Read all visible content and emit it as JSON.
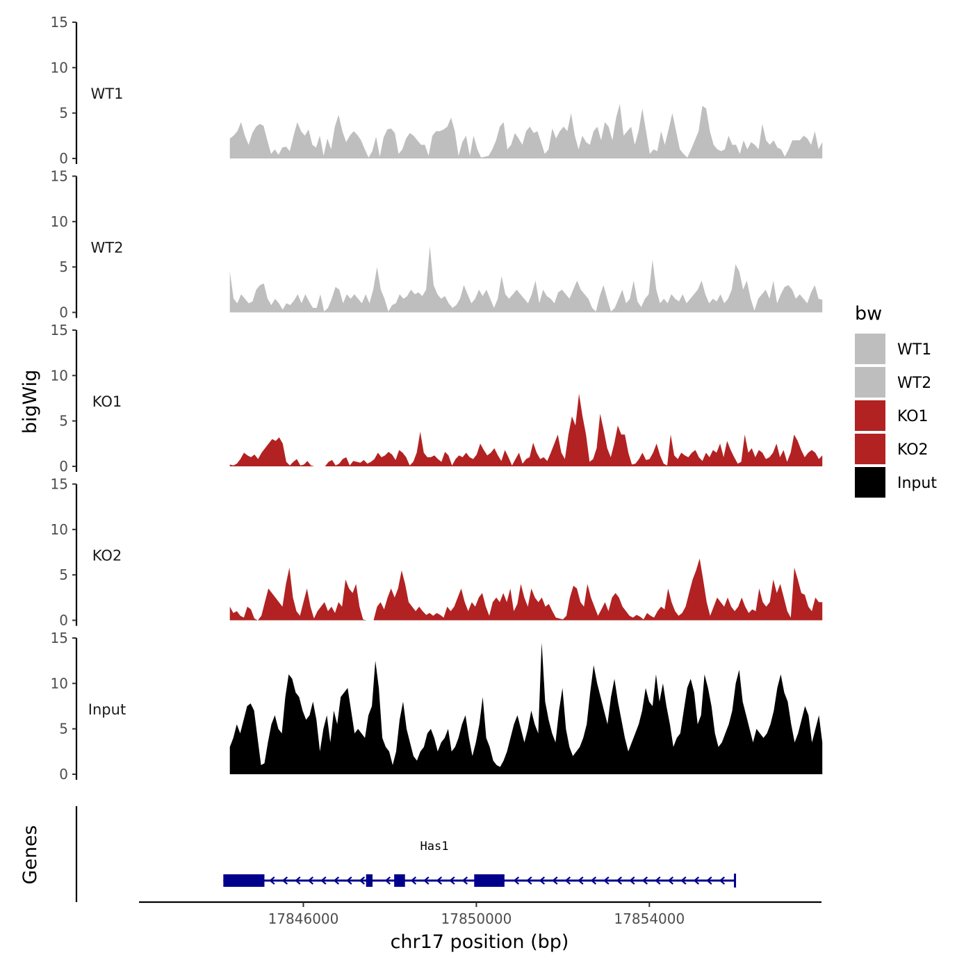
{
  "chart_data": {
    "type": "area",
    "xlabel": "chr17 position (bp)",
    "ylabel": "bigWig",
    "genes_label": "Genes",
    "xlim": [
      17842200,
      17857980
    ],
    "x_ticks": [
      17846000,
      17850000,
      17854000
    ],
    "x_tick_labels": [
      "17846000",
      "17850000",
      "17854000"
    ],
    "ylim": [
      0,
      15
    ],
    "y_ticks": [
      0,
      5,
      10,
      15
    ],
    "y_tick_labels": [
      "0",
      "5",
      "10",
      "15"
    ],
    "data_range": [
      17844300,
      17858000
    ],
    "tracks": [
      {
        "name": "WT1",
        "label": "WT1",
        "color": "#bebebe",
        "values": [
          2.2,
          2.5,
          3.0,
          4.0,
          2.5,
          1.5,
          2.8,
          3.5,
          3.8,
          3.6,
          2.0,
          0.5,
          1.0,
          0.4,
          1.2,
          1.3,
          0.8,
          2.5,
          4.0,
          3.0,
          2.5,
          3.2,
          1.5,
          1.2,
          2.5,
          0.3,
          2.2,
          1.0,
          3.5,
          4.8,
          3.0,
          1.8,
          2.5,
          3.0,
          2.6,
          2.0,
          1.0,
          0.1,
          0.8,
          2.4,
          0.2,
          2.3,
          3.2,
          3.3,
          2.8,
          0.5,
          1.0,
          2.2,
          2.8,
          2.5,
          2.0,
          1.5,
          1.5,
          0.3,
          2.5,
          3.0,
          3.0,
          3.2,
          3.5,
          4.5,
          3.0,
          0.3,
          1.8,
          2.5,
          0.3,
          2.5,
          1.0,
          0.1,
          0.2,
          0.3,
          1.0,
          2.0,
          3.5,
          4.0,
          1.0,
          1.5,
          2.8,
          2.2,
          1.5,
          3.0,
          3.5,
          2.8,
          3.0,
          1.8,
          0.5,
          1.0,
          3.3,
          2.2,
          3.0,
          3.5,
          3.0,
          5.0,
          2.5,
          1.0,
          2.5,
          1.8,
          1.5,
          3.0,
          3.5,
          2.0,
          4.0,
          3.5,
          2.0,
          4.5,
          6.0,
          2.5,
          3.0,
          3.5,
          1.5,
          3.0,
          5.5,
          3.0,
          0.5,
          1.0,
          0.8,
          3.0,
          1.5,
          3.2,
          5.0,
          3.0,
          1.0,
          0.5,
          0.1,
          1.0,
          2.0,
          3.0,
          5.8,
          5.5,
          3.0,
          1.5,
          1.0,
          0.8,
          1.0,
          2.5,
          1.5,
          1.5,
          0.5,
          2.0,
          1.0,
          1.8,
          1.5,
          1.0,
          3.8,
          2.0,
          1.5,
          2.0,
          1.2,
          1.0,
          0.2,
          1.0,
          2.0,
          2.0,
          2.0,
          2.5,
          2.2,
          1.5,
          3.0,
          1.0,
          1.8
        ]
      },
      {
        "name": "WT2",
        "label": "WT2",
        "color": "#bebebe",
        "values": [
          4.5,
          1.5,
          1.0,
          2.0,
          1.5,
          1.0,
          1.2,
          2.5,
          3.0,
          3.2,
          1.5,
          0.8,
          1.5,
          1.0,
          0.3,
          1.0,
          0.8,
          1.3,
          2.0,
          1.0,
          2.0,
          1.2,
          0.5,
          0.5,
          2.0,
          0.1,
          0.5,
          1.5,
          2.8,
          2.5,
          1.0,
          2.0,
          1.5,
          2.0,
          1.5,
          1.0,
          2.0,
          1.0,
          2.5,
          5.0,
          2.5,
          1.5,
          0.1,
          0.8,
          1.0,
          2.0,
          1.5,
          1.8,
          2.5,
          2.0,
          2.2,
          1.8,
          2.5,
          7.3,
          3.0,
          2.0,
          1.5,
          1.8,
          1.0,
          0.5,
          0.8,
          1.5,
          3.0,
          2.0,
          1.0,
          1.5,
          2.5,
          1.8,
          2.5,
          1.5,
          0.5,
          1.5,
          4.0,
          2.0,
          1.5,
          2.0,
          2.5,
          2.0,
          1.5,
          1.0,
          2.0,
          3.5,
          1.0,
          2.5,
          1.8,
          1.5,
          1.0,
          2.2,
          2.5,
          2.0,
          1.5,
          2.5,
          3.5,
          2.5,
          2.0,
          1.5,
          0.5,
          0.1,
          1.8,
          3.0,
          1.5,
          0.1,
          0.5,
          1.5,
          2.5,
          1.0,
          1.5,
          3.5,
          1.2,
          0.6,
          1.5,
          2.0,
          5.8,
          2.5,
          1.0,
          1.5,
          1.0,
          2.0,
          1.5,
          1.2,
          2.0,
          1.0,
          1.5,
          2.0,
          2.5,
          3.5,
          2.0,
          1.0,
          1.5,
          1.2,
          2.0,
          1.0,
          1.5,
          2.5,
          5.3,
          4.5,
          2.5,
          3.5,
          1.5,
          0.2,
          1.5,
          2.0,
          2.5,
          1.5,
          3.5,
          1.0,
          2.0,
          2.8,
          3.0,
          2.5,
          1.5,
          2.0,
          1.5,
          1.0,
          2.2,
          3.0,
          1.5,
          1.4
        ]
      },
      {
        "name": "KO1",
        "label": "KO1",
        "color": "#b22222",
        "values": [
          0.2,
          0.1,
          0.3,
          0.8,
          1.5,
          1.2,
          1.0,
          1.3,
          0.8,
          1.5,
          2.0,
          2.5,
          3.0,
          2.8,
          3.2,
          2.5,
          0.5,
          0.1,
          0.5,
          0.8,
          0.1,
          0.2,
          0.6,
          0.1,
          0.0,
          0.0,
          0.0,
          0.0,
          0.5,
          0.7,
          0.1,
          0.3,
          0.8,
          1.0,
          0.1,
          0.6,
          0.5,
          0.4,
          0.7,
          0.3,
          0.5,
          0.8,
          1.5,
          1.0,
          1.2,
          1.6,
          1.3,
          0.7,
          1.8,
          1.5,
          1.0,
          0.1,
          0.5,
          1.5,
          3.8,
          1.5,
          1.0,
          1.0,
          1.2,
          0.8,
          0.5,
          1.6,
          1.2,
          0.1,
          0.8,
          1.2,
          1.0,
          1.5,
          1.0,
          0.8,
          1.3,
          2.5,
          1.8,
          1.2,
          1.5,
          2.0,
          1.2,
          0.6,
          1.8,
          1.0,
          0.1,
          0.8,
          1.5,
          0.3,
          0.8,
          1.0,
          2.6,
          1.5,
          0.8,
          1.0,
          0.6,
          1.5,
          2.5,
          3.5,
          1.5,
          0.8,
          3.5,
          5.5,
          4.5,
          8.0,
          5.5,
          3.5,
          0.5,
          0.8,
          2.0,
          5.8,
          4.0,
          2.0,
          1.0,
          2.5,
          4.5,
          3.5,
          3.5,
          1.5,
          0.2,
          0.3,
          0.8,
          1.5,
          0.7,
          0.8,
          1.5,
          2.5,
          1.2,
          0.3,
          0.1,
          3.5,
          1.2,
          0.8,
          1.5,
          1.2,
          1.0,
          1.5,
          1.8,
          1.0,
          0.6,
          1.5,
          1.0,
          1.8,
          1.5,
          2.5,
          1.0,
          2.8,
          1.8,
          1.0,
          0.3,
          0.5,
          3.5,
          1.5,
          2.0,
          1.0,
          1.8,
          1.5,
          0.8,
          1.0,
          1.5,
          2.5,
          1.0,
          1.8,
          0.5,
          1.5,
          3.5,
          2.8,
          1.8,
          1.0,
          1.5,
          1.8,
          1.5,
          0.8,
          1.2
        ]
      },
      {
        "name": "KO2",
        "label": "KO2",
        "color": "#b22222",
        "values": [
          1.5,
          0.8,
          1.0,
          0.5,
          0.3,
          1.5,
          1.2,
          0.2,
          0.0,
          0.5,
          2.0,
          3.5,
          3.0,
          2.5,
          2.0,
          1.5,
          4.0,
          5.8,
          2.5,
          1.0,
          0.5,
          2.0,
          3.5,
          1.5,
          0.2,
          1.0,
          1.5,
          2.0,
          1.0,
          1.5,
          0.8,
          2.0,
          1.5,
          4.5,
          3.5,
          3.0,
          4.0,
          1.5,
          0.1,
          0.0,
          0.0,
          0.0,
          1.5,
          2.0,
          1.2,
          2.5,
          3.5,
          2.5,
          3.5,
          5.5,
          4.0,
          2.0,
          1.5,
          1.0,
          1.5,
          1.0,
          0.6,
          0.8,
          0.5,
          0.8,
          0.6,
          0.3,
          1.5,
          1.0,
          1.5,
          2.5,
          3.5,
          2.0,
          1.0,
          2.0,
          1.5,
          2.5,
          3.0,
          1.5,
          0.5,
          2.0,
          2.5,
          2.0,
          3.0,
          2.0,
          3.5,
          1.0,
          1.8,
          4.0,
          2.5,
          1.5,
          3.5,
          2.5,
          2.0,
          2.5,
          1.5,
          1.8,
          1.0,
          0.3,
          0.2,
          0.1,
          0.5,
          2.5,
          3.8,
          3.5,
          2.0,
          1.5,
          4.0,
          2.5,
          1.5,
          0.5,
          1.2,
          2.0,
          1.0,
          2.5,
          3.0,
          2.5,
          1.5,
          1.0,
          0.5,
          0.3,
          0.6,
          0.4,
          0.1,
          0.8,
          0.5,
          0.3,
          1.0,
          1.5,
          1.2,
          3.5,
          2.0,
          1.0,
          0.5,
          0.8,
          1.5,
          3.0,
          4.5,
          5.5,
          6.8,
          4.5,
          2.0,
          0.5,
          1.5,
          2.5,
          2.0,
          1.5,
          2.5,
          1.5,
          1.0,
          1.5,
          2.5,
          1.5,
          0.8,
          1.2,
          1.0,
          3.5,
          2.0,
          1.5,
          2.0,
          4.5,
          3.0,
          4.0,
          2.5,
          1.0,
          0.3,
          5.8,
          4.5,
          3.0,
          2.8,
          1.5,
          1.0,
          2.5,
          2.0,
          2.0
        ]
      },
      {
        "name": "Input",
        "label": "Input",
        "color": "#000000",
        "values": [
          3.0,
          4.0,
          5.5,
          4.5,
          6.0,
          7.5,
          7.8,
          7.0,
          4.0,
          1.0,
          1.2,
          3.5,
          5.5,
          6.5,
          5.0,
          4.5,
          8.5,
          11.0,
          10.5,
          9.0,
          8.5,
          7.0,
          6.0,
          6.5,
          8.0,
          6.0,
          2.5,
          5.0,
          6.5,
          3.5,
          7.0,
          5.5,
          8.5,
          9.0,
          9.5,
          7.0,
          4.5,
          5.0,
          4.5,
          4.0,
          6.5,
          7.5,
          12.5,
          9.5,
          4.0,
          3.0,
          2.5,
          1.0,
          2.5,
          6.0,
          8.0,
          5.0,
          3.5,
          2.0,
          1.5,
          2.5,
          3.0,
          4.5,
          5.0,
          4.0,
          2.5,
          3.5,
          4.0,
          5.0,
          2.5,
          3.0,
          4.0,
          5.5,
          6.5,
          4.0,
          2.0,
          3.5,
          5.5,
          8.5,
          4.0,
          3.0,
          1.5,
          1.0,
          0.8,
          1.5,
          2.5,
          4.0,
          5.5,
          6.5,
          5.0,
          3.5,
          5.0,
          7.0,
          5.5,
          4.5,
          14.5,
          8.0,
          6.0,
          4.5,
          3.5,
          7.0,
          9.5,
          5.0,
          3.0,
          2.0,
          2.5,
          3.0,
          4.0,
          5.5,
          9.0,
          12.0,
          10.0,
          8.5,
          7.0,
          5.5,
          8.5,
          10.5,
          8.0,
          6.0,
          4.0,
          2.5,
          3.5,
          4.5,
          5.5,
          7.0,
          9.5,
          8.0,
          7.5,
          11.0,
          8.0,
          10.0,
          7.5,
          5.5,
          3.0,
          4.0,
          4.5,
          7.0,
          9.5,
          10.5,
          9.0,
          5.5,
          6.5,
          11.0,
          9.5,
          7.5,
          4.5,
          3.0,
          3.5,
          4.5,
          5.5,
          7.0,
          10.0,
          11.5,
          8.0,
          6.5,
          5.0,
          3.5,
          5.0,
          4.5,
          4.0,
          4.5,
          5.5,
          7.0,
          9.5,
          11.0,
          9.0,
          8.0,
          5.5,
          3.5,
          4.5,
          6.0,
          7.5,
          6.5,
          3.5,
          5.0,
          6.5,
          3.5
        ]
      }
    ],
    "legend": {
      "title": "bw",
      "position": "right",
      "entries": [
        {
          "label": "WT1",
          "color": "#bebebe"
        },
        {
          "label": "WT2",
          "color": "#bebebe"
        },
        {
          "label": "KO1",
          "color": "#b22222"
        },
        {
          "label": "KO2",
          "color": "#b22222"
        },
        {
          "label": "Input",
          "color": "#000000"
        }
      ]
    },
    "gene": {
      "name": "Has1",
      "color": "#00008b",
      "start": 17844150,
      "end": 17855980,
      "strand": "-",
      "exons": [
        {
          "start": 17844150,
          "end": 17845100,
          "thick": true
        },
        {
          "start": 17847450,
          "end": 17847600,
          "thick": true
        },
        {
          "start": 17848100,
          "end": 17848350,
          "thick": true
        },
        {
          "start": 17849950,
          "end": 17850650,
          "thick": true
        }
      ]
    }
  }
}
